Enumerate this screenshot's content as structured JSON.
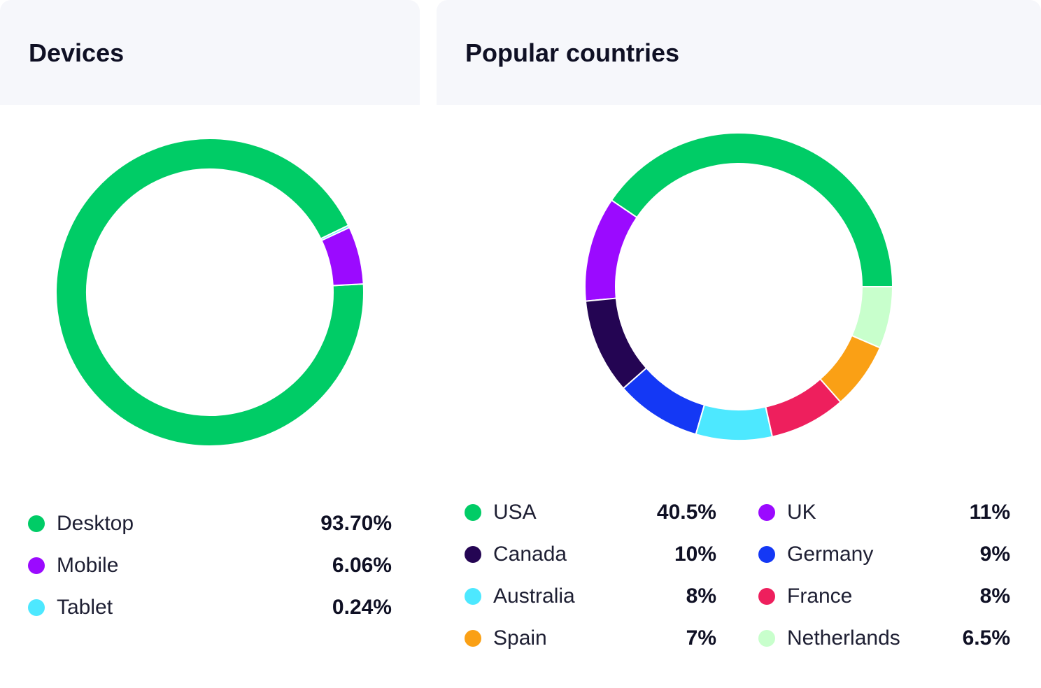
{
  "devices": {
    "title": "Devices",
    "chart_data": {
      "type": "pie",
      "variant": "donut",
      "categories": [
        "Desktop",
        "Mobile",
        "Tablet"
      ],
      "values": [
        93.7,
        6.06,
        0.24
      ],
      "value_labels": [
        "93.70%",
        "6.06%",
        "0.24%"
      ],
      "colors": [
        "#00cc66",
        "#9b0aff",
        "#4de8ff"
      ],
      "legend_position": "bottom"
    }
  },
  "countries": {
    "title": "Popular countries",
    "chart_data": {
      "type": "pie",
      "variant": "donut",
      "categories": [
        "USA",
        "UK",
        "Canada",
        "Germany",
        "Australia",
        "France",
        "Spain",
        "Netherlands"
      ],
      "values": [
        40.5,
        11,
        10,
        9,
        8,
        8,
        7,
        6.5
      ],
      "value_labels": [
        "40.5%",
        "11%",
        "10%",
        "9%",
        "8%",
        "8%",
        "7%",
        "6.5%"
      ],
      "colors": [
        "#00cc66",
        "#9b0aff",
        "#240553",
        "#1438f5",
        "#4de8ff",
        "#ee1f5d",
        "#faa015",
        "#c8ffcc"
      ],
      "legend_position": "bottom"
    }
  }
}
